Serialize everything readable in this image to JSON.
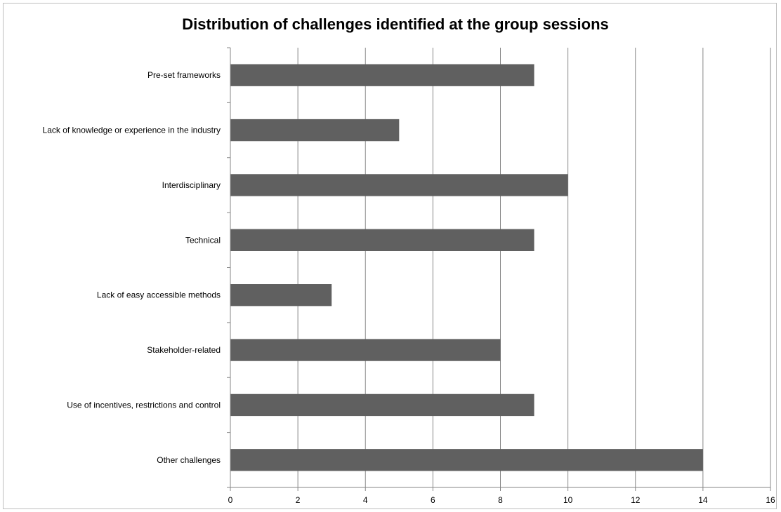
{
  "chart_data": {
    "type": "bar",
    "orientation": "horizontal",
    "title": "Distribution of challenges identified at the group sessions",
    "xlabel": "",
    "ylabel": "",
    "categories": [
      "Pre-set frameworks",
      "Lack of knowledge or experience in the industry",
      "Interdisciplinary",
      "Technical",
      "Lack of easy accessible methods",
      "Stakeholder-related",
      "Use of incentives, restrictions and control",
      "Other challenges"
    ],
    "values": [
      9,
      5,
      10,
      9,
      3,
      8,
      9,
      14
    ],
    "xlim": [
      0,
      16
    ],
    "xticks": [
      0,
      2,
      4,
      6,
      8,
      10,
      12,
      14,
      16
    ],
    "grid": "vertical",
    "legend": "none",
    "bar_color": "#606060",
    "grid_color": "#888888"
  }
}
